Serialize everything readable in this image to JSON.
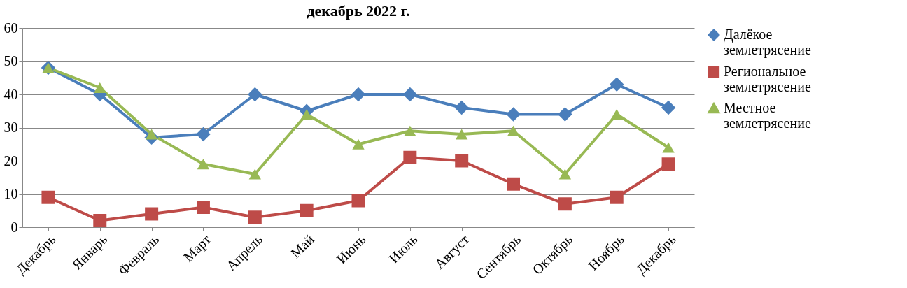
{
  "chart_data": {
    "type": "line",
    "title": "декабрь 2022 г.",
    "categories": [
      "Декабрь",
      "Январь",
      "Февраль",
      "Март",
      "Апрель",
      "Май",
      "Июнь",
      "Июль",
      "Август",
      "Сентябрь",
      "Октябрь",
      "Ноябрь",
      "Декабрь"
    ],
    "series": [
      {
        "name": "Далёкое землетрясение",
        "color": "#4a7ebb",
        "marker": "diamond",
        "values": [
          48,
          40,
          27,
          28,
          40,
          35,
          40,
          40,
          36,
          34,
          34,
          43,
          36
        ]
      },
      {
        "name": "Региональное землетрясение",
        "color": "#be4b48",
        "marker": "square",
        "values": [
          9,
          2,
          4,
          6,
          3,
          5,
          8,
          21,
          20,
          13,
          7,
          9,
          19
        ]
      },
      {
        "name": "Местное землетрясение",
        "color": "#98b954",
        "marker": "triangle",
        "values": [
          48,
          42,
          28,
          19,
          16,
          34,
          25,
          29,
          28,
          29,
          16,
          34,
          24
        ]
      }
    ],
    "ylim": [
      0,
      60
    ],
    "yticks": [
      0,
      10,
      20,
      30,
      40,
      50,
      60
    ],
    "grid": "y",
    "legend": "right"
  }
}
